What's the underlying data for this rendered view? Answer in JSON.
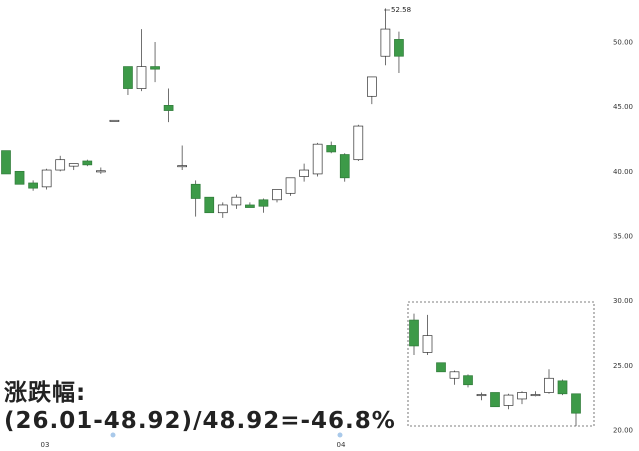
{
  "chart_data": {
    "type": "candlestick",
    "y_ticks": [
      "50.00",
      "45.00",
      "40.00",
      "35.00",
      "30.00",
      "25.00",
      "20.00"
    ],
    "x_ticks": [
      "03",
      "04"
    ],
    "up_color": "#ffffff",
    "down_color": "#3d9a48",
    "candles": [
      {
        "o": 41.6,
        "h": 41.6,
        "l": 39.8,
        "c": 39.8
      },
      {
        "o": 40.0,
        "h": 40.0,
        "l": 39.0,
        "c": 39.0
      },
      {
        "o": 39.1,
        "h": 39.3,
        "l": 38.5,
        "c": 38.7
      },
      {
        "o": 38.8,
        "h": 40.2,
        "l": 38.6,
        "c": 40.1
      },
      {
        "o": 40.1,
        "h": 41.2,
        "l": 40.0,
        "c": 40.9
      },
      {
        "o": 40.4,
        "h": 40.6,
        "l": 40.1,
        "c": 40.6
      },
      {
        "o": 40.8,
        "h": 40.9,
        "l": 40.4,
        "c": 40.5
      },
      {
        "o": 40.0,
        "h": 40.3,
        "l": 39.8,
        "c": 40.0
      },
      {
        "o": 43.9,
        "h": 43.9,
        "l": 43.9,
        "c": 43.9
      },
      {
        "o": 48.1,
        "h": 48.1,
        "l": 45.9,
        "c": 46.4
      },
      {
        "o": 46.4,
        "h": 51.0,
        "l": 46.2,
        "c": 48.1
      },
      {
        "o": 48.1,
        "h": 50.0,
        "l": 46.9,
        "c": 47.9
      },
      {
        "o": 45.1,
        "h": 46.4,
        "l": 43.8,
        "c": 44.7
      },
      {
        "o": 40.4,
        "h": 42.0,
        "l": 40.1,
        "c": 40.4
      },
      {
        "o": 39.0,
        "h": 39.3,
        "l": 36.5,
        "c": 37.9
      },
      {
        "o": 38.0,
        "h": 38.0,
        "l": 36.8,
        "c": 36.8
      },
      {
        "o": 36.8,
        "h": 37.6,
        "l": 36.4,
        "c": 37.4
      },
      {
        "o": 37.4,
        "h": 38.2,
        "l": 37.1,
        "c": 38.0
      },
      {
        "o": 37.4,
        "h": 37.6,
        "l": 37.3,
        "c": 37.2
      },
      {
        "o": 37.8,
        "h": 37.9,
        "l": 36.8,
        "c": 37.3
      },
      {
        "o": 37.8,
        "h": 38.6,
        "l": 37.6,
        "c": 38.6
      },
      {
        "o": 38.3,
        "h": 39.5,
        "l": 38.1,
        "c": 39.5
      },
      {
        "o": 39.6,
        "h": 40.6,
        "l": 39.2,
        "c": 40.1
      },
      {
        "o": 39.8,
        "h": 42.2,
        "l": 39.6,
        "c": 42.1
      },
      {
        "o": 42.0,
        "h": 42.3,
        "l": 41.4,
        "c": 41.5
      },
      {
        "o": 41.3,
        "h": 41.4,
        "l": 39.2,
        "c": 39.5
      },
      {
        "o": 40.9,
        "h": 43.6,
        "l": 40.8,
        "c": 43.5
      },
      {
        "o": 45.8,
        "h": 47.3,
        "l": 45.2,
        "c": 47.3
      },
      {
        "o": 48.9,
        "h": 52.6,
        "l": 48.2,
        "c": 51.0
      },
      {
        "o": 50.2,
        "h": 50.8,
        "l": 47.6,
        "c": 48.9
      }
    ],
    "max_label": "52.58",
    "inset_candles": [
      {
        "o": 28.5,
        "h": 29.0,
        "l": 25.8,
        "c": 26.5
      },
      {
        "o": 26.0,
        "h": 28.9,
        "l": 25.8,
        "c": 27.3
      },
      {
        "o": 25.2,
        "h": 25.2,
        "l": 24.5,
        "c": 24.5
      },
      {
        "o": 24.0,
        "h": 24.6,
        "l": 23.5,
        "c": 24.5
      },
      {
        "o": 24.2,
        "h": 24.3,
        "l": 23.3,
        "c": 23.5
      },
      {
        "o": 22.7,
        "h": 22.9,
        "l": 22.3,
        "c": 22.7
      },
      {
        "o": 22.9,
        "h": 22.9,
        "l": 21.8,
        "c": 21.8
      },
      {
        "o": 21.9,
        "h": 22.8,
        "l": 21.6,
        "c": 22.7
      },
      {
        "o": 22.4,
        "h": 23.0,
        "l": 22.0,
        "c": 22.9
      },
      {
        "o": 22.7,
        "h": 23.0,
        "l": 22.6,
        "c": 22.7
      },
      {
        "o": 22.9,
        "h": 24.7,
        "l": 22.8,
        "c": 24.0
      },
      {
        "o": 23.8,
        "h": 23.9,
        "l": 22.7,
        "c": 22.8
      },
      {
        "o": 22.8,
        "h": 22.8,
        "l": 20.3,
        "c": 21.3
      }
    ]
  },
  "formula": {
    "line1": "涨跌幅:",
    "line2": "(26.01-48.92)/48.92=-46.8%"
  }
}
